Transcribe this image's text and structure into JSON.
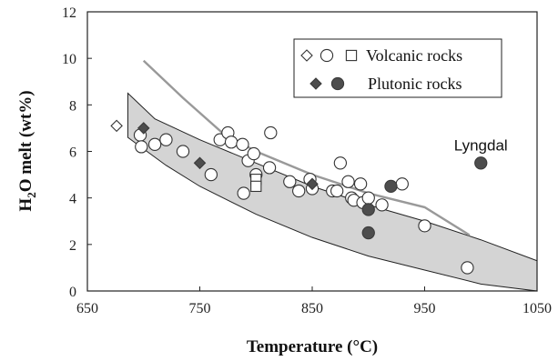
{
  "chart_data": {
    "type": "scatter",
    "title": "",
    "xlabel": "Temperature (°C)",
    "ylabel": {
      "prefix": "H",
      "sub": "2",
      "suffix": "O melt  (wt%)"
    },
    "xlim": [
      650,
      1050
    ],
    "ylim": [
      0,
      12
    ],
    "xticks": [
      "650",
      "750",
      "850",
      "950",
      "1050"
    ],
    "yticks": [
      "0",
      "2",
      "4",
      "6",
      "8",
      "10",
      "12"
    ],
    "grid": false,
    "legend_position": "top-right",
    "legend": [
      {
        "label": "Volcanic rocks",
        "markers": [
          "diamond-open",
          "circle-open",
          "square-open"
        ]
      },
      {
        "label": "Plutonic rocks",
        "markers": [
          "diamond-filled",
          "circle-filled"
        ]
      }
    ],
    "shaded_region": {
      "color": "#d4d4d4",
      "polygon": [
        [
          686,
          8.5
        ],
        [
          710,
          7.4
        ],
        [
          750,
          6.5
        ],
        [
          800,
          5.5
        ],
        [
          850,
          4.5
        ],
        [
          900,
          3.7
        ],
        [
          950,
          3.0
        ],
        [
          1000,
          2.2
        ],
        [
          1050,
          1.3
        ],
        [
          1050,
          0
        ],
        [
          1000,
          0.3
        ],
        [
          950,
          0.9
        ],
        [
          900,
          1.5
        ],
        [
          850,
          2.3
        ],
        [
          800,
          3.3
        ],
        [
          750,
          4.5
        ],
        [
          720,
          5.4
        ],
        [
          686,
          6.6
        ]
      ]
    },
    "trend_line": {
      "color": "#999999",
      "points": [
        [
          700,
          9.9
        ],
        [
          735,
          8.3
        ],
        [
          770,
          6.8
        ],
        [
          800,
          6.0
        ],
        [
          850,
          5.0
        ],
        [
          900,
          4.2
        ],
        [
          950,
          3.6
        ],
        [
          990,
          2.4
        ]
      ]
    },
    "series": [
      {
        "name": "Volcanic rocks",
        "marker": "diamond-open",
        "points": [
          [
            676,
            7.1
          ]
        ]
      },
      {
        "name": "Volcanic rocks",
        "marker": "circle-open",
        "points": [
          [
            697,
            6.7
          ],
          [
            698,
            6.2
          ],
          [
            710,
            6.3
          ],
          [
            720,
            6.5
          ],
          [
            735,
            6.0
          ],
          [
            760,
            5.0
          ],
          [
            768,
            6.5
          ],
          [
            775,
            6.8
          ],
          [
            778,
            6.4
          ],
          [
            788,
            6.3
          ],
          [
            789,
            4.2
          ],
          [
            793,
            5.6
          ],
          [
            798,
            5.9
          ],
          [
            800,
            5.0
          ],
          [
            812,
            5.3
          ],
          [
            813,
            6.8
          ],
          [
            830,
            4.7
          ],
          [
            838,
            4.3
          ],
          [
            848,
            4.8
          ],
          [
            850,
            4.4
          ],
          [
            868,
            4.3
          ],
          [
            872,
            4.3
          ],
          [
            875,
            5.5
          ],
          [
            882,
            4.7
          ],
          [
            885,
            4.0
          ],
          [
            887,
            3.9
          ],
          [
            893,
            4.6
          ],
          [
            895,
            3.8
          ],
          [
            900,
            4.0
          ],
          [
            912,
            3.7
          ],
          [
            930,
            4.6
          ],
          [
            950,
            2.8
          ],
          [
            988,
            1.0
          ]
        ]
      },
      {
        "name": "Volcanic rocks",
        "marker": "square-open",
        "points": [
          [
            800,
            4.8
          ],
          [
            800,
            4.5
          ]
        ]
      },
      {
        "name": "Plutonic rocks",
        "marker": "diamond-filled",
        "points": [
          [
            700,
            7.0
          ],
          [
            750,
            5.5
          ],
          [
            850,
            4.6
          ]
        ]
      },
      {
        "name": "Plutonic rocks",
        "marker": "circle-filled",
        "points": [
          [
            900,
            3.5
          ],
          [
            900,
            2.5
          ],
          [
            920,
            4.5
          ],
          [
            1000,
            5.5
          ]
        ]
      }
    ],
    "annotations": [
      {
        "text": "Lyngdal",
        "x": 1000,
        "y": 5.5
      }
    ]
  }
}
